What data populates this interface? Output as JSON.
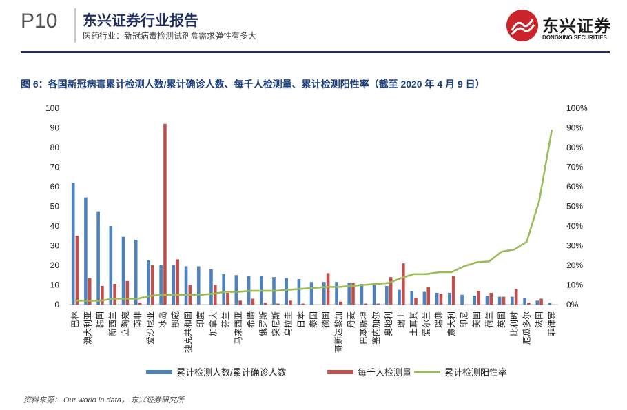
{
  "header": {
    "page_number": "P10",
    "report_title": "东兴证券行业报告",
    "subtitle": "医药行业：新冠病毒检测试剂盒需求弹性有多大",
    "logo_cn": "东兴证券",
    "logo_en": "DONGXING SECURITIES"
  },
  "figure": {
    "title": "图 6：各国新冠病毒累计检测人数/累计确诊人数、每千人检测量、累计检测阳性率（截至 2020 年 4 月 9 日）"
  },
  "source": "资料来源： Our world in data， 东兴证券研究所",
  "colors": {
    "blue": "#4f81bd",
    "red": "#c0504d",
    "green": "#9bbb59",
    "brand_navy": "#1d2e5c",
    "brand_red": "#c9252b"
  },
  "chart_data": {
    "type": "bar",
    "categories": [
      "巴林",
      "澳大利亚",
      "韩国",
      "新西兰",
      "立陶宛",
      "南非",
      "爱沙尼亚",
      "冰岛",
      "挪威",
      "捷克共和国",
      "印度",
      "加拿大",
      "芬兰",
      "马来西亚",
      "希腊",
      "俄罗斯",
      "突尼斯",
      "乌拉圭",
      "日本",
      "泰国",
      "德国",
      "哥斯达黎加",
      "丹麦",
      "巴基斯坦",
      "塞内加尔",
      "奥地利",
      "瑞士",
      "土耳其",
      "爱尔兰",
      "瑞典",
      "意大利",
      "印尼",
      "美国",
      "荷兰",
      "英国",
      "比利时",
      "厄瓜多尔",
      "法国",
      "菲律宾"
    ],
    "series": [
      {
        "name": "累计检测人数/累计确诊人数",
        "axis": "left",
        "values": [
          62,
          54.5,
          47.5,
          40,
          34.5,
          33,
          22.5,
          20,
          20,
          19.5,
          19.5,
          18,
          15.5,
          15,
          14.5,
          14.5,
          14,
          13.5,
          13,
          11.5,
          11.5,
          11.5,
          11,
          10.5,
          10,
          9.5,
          7.5,
          7,
          6.5,
          6,
          6,
          5,
          4.5,
          4.5,
          4,
          4,
          3.5,
          2,
          1
        ]
      },
      {
        "name": "每千人检测量",
        "axis": "left",
        "values": [
          35,
          13.5,
          9.5,
          10.5,
          12,
          1,
          20,
          92,
          23,
          10,
          0,
          10,
          6,
          2,
          3,
          1,
          0.5,
          2,
          0.5,
          0,
          16,
          1.5,
          11,
          0.5,
          0.5,
          14,
          21,
          3.5,
          9,
          5.5,
          14.5,
          0,
          7,
          6,
          4,
          8,
          1,
          3,
          0
        ]
      },
      {
        "name": "累计检测阳性率",
        "axis": "right",
        "values": [
          0.02,
          0.02,
          0.02,
          0.03,
          0.03,
          0.03,
          0.045,
          0.05,
          0.05,
          0.05,
          0.05,
          0.055,
          0.065,
          0.065,
          0.07,
          0.07,
          0.07,
          0.075,
          0.08,
          0.085,
          0.09,
          0.09,
          0.095,
          0.1,
          0.105,
          0.11,
          0.135,
          0.155,
          0.155,
          0.165,
          0.165,
          0.195,
          0.215,
          0.22,
          0.27,
          0.28,
          0.32,
          0.53,
          0.89
        ]
      }
    ],
    "y_left_ticks": [
      "0",
      "10",
      "20",
      "30",
      "40",
      "50",
      "60",
      "70",
      "80",
      "90",
      "100"
    ],
    "y_right_ticks": [
      "0%",
      "10%",
      "20%",
      "30%",
      "40%",
      "50%",
      "60%",
      "70%",
      "80%",
      "90%",
      "100%"
    ],
    "ylim_left": [
      0,
      100
    ],
    "ylim_right": [
      0,
      1
    ],
    "legend_position": "bottom"
  }
}
